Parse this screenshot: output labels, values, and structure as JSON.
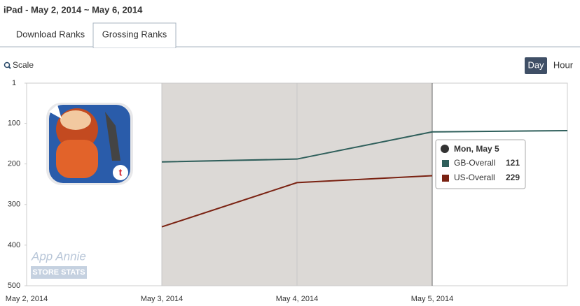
{
  "page": {
    "header": "iPad - May 2, 2014 ~ May 6, 2014",
    "tabs": [
      "Download Ranks",
      "Grossing Ranks"
    ],
    "active_tab": 1,
    "scale": "Scale",
    "buttons": [
      "Day",
      "Hour"
    ],
    "active_button": 0,
    "watermark": [
      "App Annie",
      "STORE STATS"
    ]
  },
  "chart_data": {
    "type": "line",
    "categories": [
      "May 2, 2014",
      "May 3, 2014",
      "May 4, 2014",
      "May 5, 2014",
      null
    ],
    "series": [
      {
        "name": "GB-Overall",
        "color": "#2f5f5b",
        "values": [
          null,
          195,
          188,
          121,
          118
        ]
      },
      {
        "name": "US-Overall",
        "color": "#7a2212",
        "values": [
          null,
          355,
          246,
          229,
          null
        ]
      }
    ],
    "ylim": [
      1,
      500
    ],
    "y_inverted": true,
    "yticks": [
      1,
      100,
      200,
      300,
      400,
      500
    ],
    "tooltip": {
      "title": "Mon, May 5",
      "index": 3
    }
  }
}
